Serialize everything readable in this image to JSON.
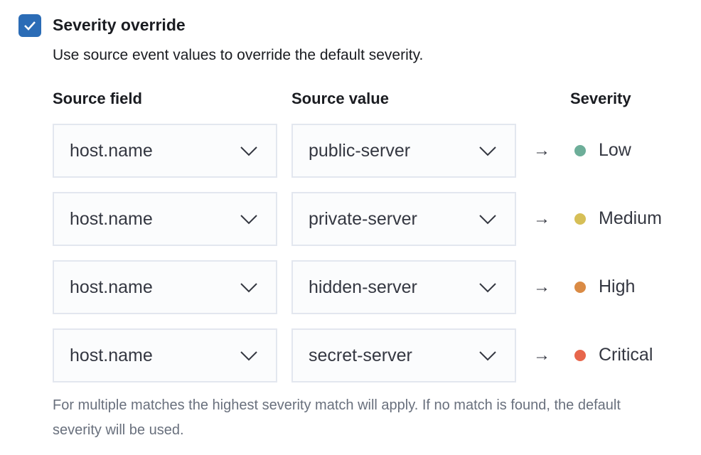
{
  "checkbox": {
    "label": "Severity override",
    "checked": true,
    "color": "#2b6cb6"
  },
  "description": "Use source event values to override the default severity.",
  "headers": {
    "source_field": "Source field",
    "source_value": "Source value",
    "severity": "Severity"
  },
  "rows": [
    {
      "field": "host.name",
      "value": "public-server",
      "severity": "Low",
      "color": "#6dae99"
    },
    {
      "field": "host.name",
      "value": "private-server",
      "severity": "Medium",
      "color": "#d6bf57"
    },
    {
      "field": "host.name",
      "value": "hidden-server",
      "severity": "High",
      "color": "#da8b45"
    },
    {
      "field": "host.name",
      "value": "secret-server",
      "severity": "Critical",
      "color": "#e7664c"
    }
  ],
  "arrow": "→",
  "help": "For multiple matches the highest severity match will apply. If no match is found, the default severity will be used."
}
